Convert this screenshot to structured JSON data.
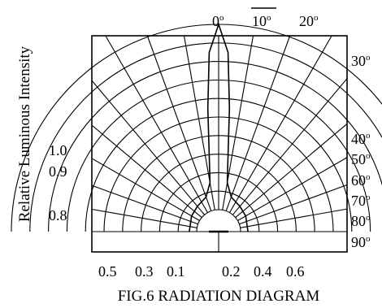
{
  "chart_data": {
    "type": "polar",
    "title": "FIG.6 RADIATION DIAGRAM",
    "ylabel": "Relative Luminous Intensity",
    "angle_labels_top": [
      {
        "text": "0",
        "sup": "o",
        "overline": false
      },
      {
        "text": "10",
        "sup": "o",
        "overline": true
      },
      {
        "text": "20",
        "sup": "o",
        "overline": false
      }
    ],
    "angle_labels_right": [
      {
        "text": "30",
        "sup": "o"
      },
      {
        "text": "40",
        "sup": "o"
      },
      {
        "text": "50",
        "sup": "o"
      },
      {
        "text": "60",
        "sup": "o"
      },
      {
        "text": "70",
        "sup": "o"
      },
      {
        "text": "80",
        "sup": "o"
      },
      {
        "text": "90",
        "sup": "o"
      }
    ],
    "intensity_labels_left": [
      "1.0",
      "0.9",
      "0.8"
    ],
    "intensity_labels_bottom": [
      "0.5",
      "0.3",
      "0.1",
      "0.2",
      "0.4",
      "0.6"
    ],
    "radial_angles_deg": [
      -90,
      -80,
      -70,
      -60,
      -50,
      -40,
      -30,
      -20,
      -10,
      0,
      10,
      20,
      30,
      40,
      50,
      60,
      70,
      80,
      90
    ],
    "ring_levels": [
      0.1,
      0.2,
      0.3,
      0.4,
      0.5,
      0.6,
      0.7,
      0.8,
      0.9,
      1.0
    ],
    "series": [
      {
        "points": [
          {
            "angle": 0,
            "intensity": 1.0
          },
          {
            "angle": 3,
            "intensity": 0.85
          },
          {
            "angle": 5,
            "intensity": 0.55
          },
          {
            "angle": 7,
            "intensity": 0.3
          },
          {
            "angle": 10,
            "intensity": 0.15
          },
          {
            "angle": 20,
            "intensity": 0.08
          },
          {
            "angle": 40,
            "intensity": 0.06
          },
          {
            "angle": 60,
            "intensity": 0.05
          },
          {
            "angle": 90,
            "intensity": 0.04
          }
        ]
      }
    ]
  }
}
